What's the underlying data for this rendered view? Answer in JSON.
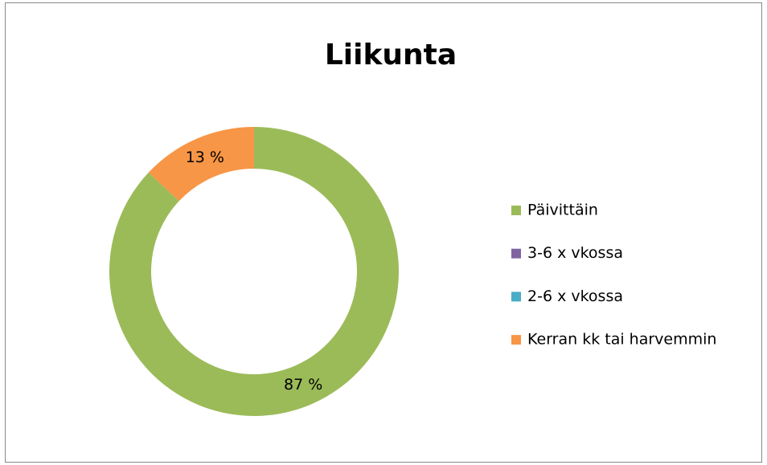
{
  "chart_data": {
    "type": "donut",
    "title": "Liikunta",
    "series": [
      {
        "name": "Päivittäin",
        "color": "#9bbb59",
        "values": [
          87
        ],
        "value_labels": [
          "87 %"
        ]
      },
      {
        "name": "3-6 x vkossa",
        "color": "#8064a2",
        "values": [
          0
        ],
        "value_labels": [
          null
        ]
      },
      {
        "name": "2-6 x vkossa",
        "color": "#4bacc6",
        "values": [
          0
        ],
        "value_labels": [
          null
        ]
      },
      {
        "name": "Kerran kk tai harvemmin",
        "color": "#f79646",
        "values": [
          13
        ],
        "value_labels": [
          "13 %"
        ]
      }
    ],
    "legend": "right"
  }
}
